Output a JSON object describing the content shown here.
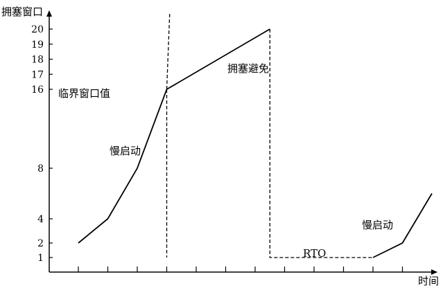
{
  "chart_data": {
    "type": "line",
    "ylabel": "拥塞窗口",
    "xlabel": "时间",
    "yticks": [
      1,
      2,
      4,
      8,
      16,
      17,
      18,
      19,
      20
    ],
    "x_tick_count": 12,
    "series": [
      {
        "segments": [
          {
            "style": "solid",
            "points": [
              [
                1,
                2
              ],
              [
                2,
                4
              ],
              [
                3,
                8
              ],
              [
                4,
                16
              ]
            ]
          },
          {
            "style": "dashed",
            "points": [
              [
                4,
                16
              ],
              [
                4,
                1
              ]
            ]
          },
          {
            "style": "solid",
            "points": [
              [
                4,
                16
              ],
              [
                7.5,
                20
              ]
            ]
          },
          {
            "style": "dashed",
            "points": [
              [
                7.5,
                20
              ],
              [
                7.5,
                1
              ],
              [
                11,
                1
              ]
            ]
          },
          {
            "style": "solid",
            "points": [
              [
                11,
                1
              ],
              [
                12,
                2
              ],
              [
                13,
                6
              ]
            ]
          }
        ]
      }
    ],
    "annotations": [
      {
        "text": "临界窗口值"
      },
      {
        "text": "慢启动"
      },
      {
        "text": "拥塞避免"
      },
      {
        "text": "RTO"
      },
      {
        "text": "慢启动"
      }
    ]
  }
}
